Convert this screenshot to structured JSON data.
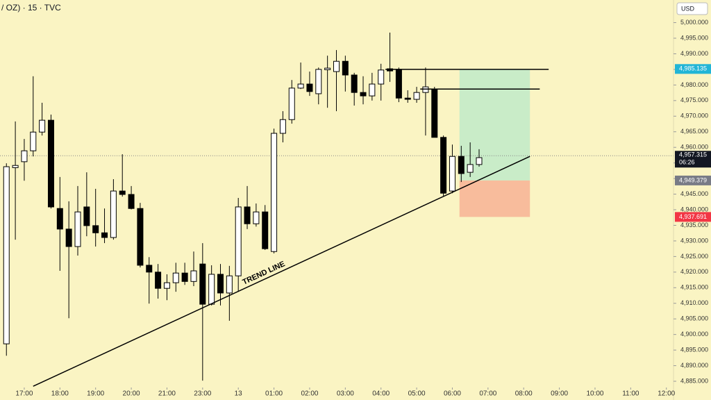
{
  "chart_data": {
    "type": "candlestick",
    "title": "/ OZ) · 15 · TVC",
    "currency": "USD",
    "background": "#faf4c3",
    "up_color": "#ffffff",
    "down_color": "#000000",
    "wick_color": "#000000",
    "x": [
      -2,
      -1,
      0,
      1,
      2,
      3,
      4,
      5,
      6,
      7,
      8,
      9,
      10,
      11,
      12,
      13,
      14,
      15,
      16,
      17,
      18,
      19,
      20,
      21,
      22,
      23,
      24,
      25,
      26,
      27,
      28,
      29,
      30,
      31,
      32,
      33,
      34,
      35,
      36,
      37,
      38,
      39,
      40,
      41,
      42,
      43,
      44,
      45,
      46,
      47,
      48,
      49,
      50,
      51
    ],
    "open": [
      4897,
      4953.5,
      4955.4,
      4958.9,
      4964.9,
      4968.7,
      4940.4,
      4933.8,
      4928.2,
      4940.9,
      4934.9,
      4932.6,
      4931.1,
      4946,
      4944.9,
      4940.4,
      4922.2,
      4920,
      4914.8,
      4916.6,
      4919.7,
      4917,
      4922.6,
      4909.7,
      4919.3,
      4913.3,
      4918.8,
      4940.9,
      4935.5,
      4939.3,
      4926.6,
      4964.5,
      4968.9,
      4979,
      4980.3,
      4977.2,
      4984.9,
      4984.3,
      4987.6,
      4983.2,
      4977.6,
      4976.5,
      4980.3,
      4985.2,
      4984.8,
      4975.8,
      4975.4,
      4977.6,
      4978.7,
      4963.2,
      4946,
      4957.1,
      4952,
      4954.5
    ],
    "high": [
      4954.9,
      4968.3,
      4962.7,
      4982.8,
      4974.3,
      4970.5,
      4950.5,
      4942.7,
      4947.6,
      4952,
      4946.7,
      4940.4,
      4949.8,
      4957.8,
      4947.6,
      4942.2,
      4924.8,
      4922.6,
      4919.3,
      4923,
      4923,
      4926.6,
      4929.3,
      4922.2,
      4922.6,
      4922,
      4943.8,
      4947.6,
      4942,
      4941.5,
      4966,
      4971.6,
      4981.6,
      4987.2,
      4984.3,
      4985.6,
      4989.4,
      4991.2,
      4989.4,
      4983.9,
      4982.8,
      4983.9,
      4986.8,
      4996.8,
      4985.6,
      4978.3,
      4979.4,
      4985.6,
      4979.4,
      4963.8,
      4960.9,
      4960.5,
      4961.6,
      4959.4
    ],
    "low": [
      4893.2,
      4930.4,
      4949.3,
      4957.1,
      4963.8,
      4940.4,
      4920.4,
      4905.2,
      4925.3,
      4931.5,
      4928.2,
      4929.3,
      4930.4,
      4944.2,
      4940.1,
      4921.5,
      4909.9,
      4911.5,
      4911,
      4913.7,
      4915.9,
      4915.5,
      4885.2,
      4909.3,
      4909.3,
      4904.4,
      4913.7,
      4933.8,
      4934.6,
      4927.1,
      4926,
      4961.6,
      4967.6,
      4978.7,
      4976.5,
      4973.8,
      4972.7,
      4971.6,
      4977.9,
      4973.4,
      4973.8,
      4975,
      4975,
      4981,
      4974.5,
      4974.3,
      4974.3,
      4963.8,
      4963.2,
      4944.4,
      4945.3,
      4948.9,
      4950.5,
      4953.8
    ],
    "close": [
      4953.8,
      4954.2,
      4958.9,
      4964.9,
      4968.7,
      4940.9,
      4933.8,
      4928.2,
      4939.3,
      4934.9,
      4932.6,
      4931.1,
      4946,
      4944.9,
      4940.4,
      4922.2,
      4920,
      4914.8,
      4916.6,
      4919.7,
      4917,
      4920.4,
      4909.7,
      4919.3,
      4913.3,
      4918.8,
      4940.9,
      4935.5,
      4939.3,
      4927.5,
      4964.5,
      4968.9,
      4979,
      4980.3,
      4977.9,
      4985,
      4985.4,
      4987.6,
      4983.2,
      4977.6,
      4976.5,
      4980.3,
      4984.8,
      4984.5,
      4975.8,
      4975.4,
      4977.6,
      4979.4,
      4963.2,
      4945.3,
      4957.1,
      4951.6,
      4954.5,
      4956.7
    ],
    "xlim": [
      -2.72,
      72.8
    ],
    "xticks": [
      {
        "value": 0,
        "label": "17:00"
      },
      {
        "value": 4,
        "label": "18:00"
      },
      {
        "value": 8,
        "label": "19:00"
      },
      {
        "value": 12,
        "label": "20:00"
      },
      {
        "value": 16,
        "label": "21:00"
      },
      {
        "value": 20,
        "label": "23:00"
      },
      {
        "value": 24,
        "label": "13"
      },
      {
        "value": 28,
        "label": "01:00"
      },
      {
        "value": 32,
        "label": "02:00"
      },
      {
        "value": 36,
        "label": "03:00"
      },
      {
        "value": 40,
        "label": "04:00"
      },
      {
        "value": 44,
        "label": "05:00"
      },
      {
        "value": 48,
        "label": "06:00"
      },
      {
        "value": 52,
        "label": "07:00"
      },
      {
        "value": 56,
        "label": "08:00"
      },
      {
        "value": 60,
        "label": "09:00"
      },
      {
        "value": 64,
        "label": "10:00"
      },
      {
        "value": 68,
        "label": "11:00"
      },
      {
        "value": 72,
        "label": "12:00"
      }
    ],
    "ylim": [
      4883,
      5007.25
    ],
    "yticks": [
      {
        "value": 4885,
        "label": "4,885.000"
      },
      {
        "value": 4890,
        "label": "4,890.000"
      },
      {
        "value": 4895,
        "label": "4,895.000"
      },
      {
        "value": 4900,
        "label": "4,900.000"
      },
      {
        "value": 4905,
        "label": "4,905.000"
      },
      {
        "value": 4910,
        "label": "4,910.000"
      },
      {
        "value": 4915,
        "label": "4,915.000"
      },
      {
        "value": 4920,
        "label": "4,920.000"
      },
      {
        "value": 4925,
        "label": "4,925.000"
      },
      {
        "value": 4930,
        "label": "4,930.000"
      },
      {
        "value": 4935,
        "label": "4,935.000"
      },
      {
        "value": 4940,
        "label": "4,940.000"
      },
      {
        "value": 4945,
        "label": "4,945.000"
      },
      {
        "value": 4950,
        "label": "4,950.000"
      },
      {
        "value": 4955,
        "label": "4,955.000"
      },
      {
        "value": 4960,
        "label": "4,960.000"
      },
      {
        "value": 4965,
        "label": "4,965.000"
      },
      {
        "value": 4970,
        "label": "4,970.000"
      },
      {
        "value": 4975,
        "label": "4,975.000"
      },
      {
        "value": 4980,
        "label": "4,980.000"
      },
      {
        "value": 4985,
        "label": "4,985.000"
      },
      {
        "value": 4990,
        "label": "4,990.000"
      },
      {
        "value": 4995,
        "label": "4,995.000"
      },
      {
        "value": 5000,
        "label": "5,000.000"
      }
    ],
    "grid": false,
    "current_price": {
      "value": 4957.315,
      "label": "4,957.315",
      "countdown": "06:26",
      "color": "#131722"
    },
    "price_labels": [
      {
        "value": 4985.135,
        "label": "4,985.135",
        "color": "#22b5d6"
      },
      {
        "value": 4949.379,
        "label": "4,949.379",
        "color": "#787b86"
      },
      {
        "value": 4937.691,
        "label": "4,937.691",
        "color": "#f23645"
      }
    ],
    "position": {
      "x": [
        48.8,
        56.7
      ],
      "target": 4985.135,
      "entry": 4949.379,
      "stop": 4937.691,
      "profit_color": "#c9ecc8",
      "loss_color": "#f8bc9c"
    },
    "levels": [
      {
        "y": 4985,
        "x": [
          40.5,
          58.8
        ]
      },
      {
        "y": 4978.7,
        "x": [
          44.4,
          57.8
        ]
      }
    ],
    "trend_line": {
      "label": "TREND LINE",
      "x": [
        1.0,
        56.7
      ],
      "y": [
        4883.4,
        4957.1
      ]
    }
  }
}
